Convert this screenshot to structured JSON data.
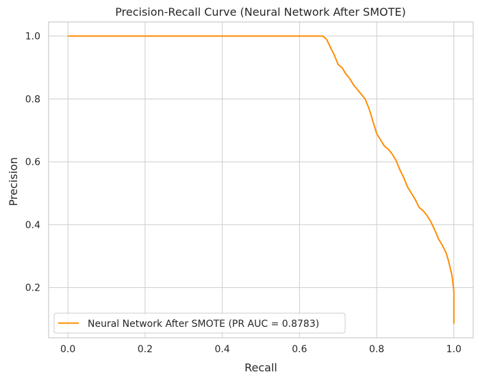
{
  "chart_data": {
    "type": "line",
    "title": "Precision-Recall Curve (Neural Network After SMOTE)",
    "xlabel": "Recall",
    "ylabel": "Precision",
    "xlim": [
      -0.05,
      1.05
    ],
    "ylim": [
      0.04,
      1.045
    ],
    "xticks": [
      0.0,
      0.2,
      0.4,
      0.6,
      0.8,
      1.0
    ],
    "xtick_labels": [
      "0.0",
      "0.2",
      "0.4",
      "0.6",
      "0.8",
      "1.0"
    ],
    "yticks": [
      0.2,
      0.4,
      0.6,
      0.8,
      1.0
    ],
    "ytick_labels": [
      "0.2",
      "0.4",
      "0.6",
      "0.8",
      "1.0"
    ],
    "grid": true,
    "legend_position": "lower-left",
    "series": [
      {
        "name": "Neural Network After SMOTE (PR AUC = 0.8783)",
        "color": "#ff8c00",
        "x": [
          0.0,
          0.1,
          0.3,
          0.5,
          0.6,
          0.66,
          0.67,
          0.68,
          0.69,
          0.7,
          0.71,
          0.72,
          0.73,
          0.74,
          0.75,
          0.76,
          0.77,
          0.78,
          0.79,
          0.8,
          0.81,
          0.82,
          0.83,
          0.84,
          0.85,
          0.86,
          0.87,
          0.88,
          0.89,
          0.9,
          0.91,
          0.92,
          0.93,
          0.94,
          0.95,
          0.96,
          0.97,
          0.98,
          0.985,
          0.99,
          0.995,
          0.998,
          1.0,
          1.0,
          1.0
        ],
        "y": [
          1.0,
          1.0,
          1.0,
          1.0,
          1.0,
          1.0,
          0.99,
          0.965,
          0.94,
          0.91,
          0.9,
          0.88,
          0.865,
          0.845,
          0.83,
          0.815,
          0.8,
          0.77,
          0.73,
          0.69,
          0.67,
          0.65,
          0.64,
          0.625,
          0.605,
          0.575,
          0.55,
          0.52,
          0.5,
          0.48,
          0.455,
          0.445,
          0.43,
          0.41,
          0.385,
          0.355,
          0.335,
          0.31,
          0.29,
          0.265,
          0.24,
          0.21,
          0.19,
          0.12,
          0.085
        ]
      }
    ]
  }
}
